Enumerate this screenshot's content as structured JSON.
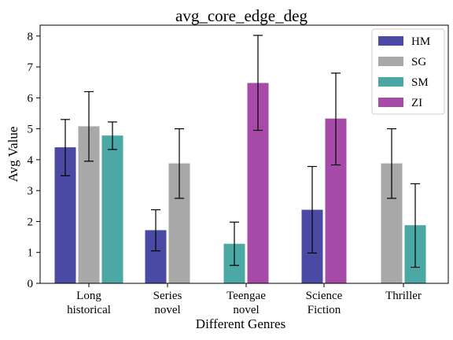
{
  "chart_data": {
    "type": "bar",
    "title": "avg_core_edge_deg",
    "xlabel": "Different Genres",
    "ylabel": "Avg Value",
    "ylim": [
      0,
      8.35
    ],
    "yticks": [
      0,
      1,
      2,
      3,
      4,
      5,
      6,
      7,
      8
    ],
    "grid": false,
    "legend_position": "top-right",
    "categories": [
      [
        "Long",
        "historical"
      ],
      [
        "Series",
        "novel"
      ],
      [
        "Teengae",
        "novel"
      ],
      [
        "Science",
        "Fiction"
      ],
      [
        "Thriller"
      ]
    ],
    "series": [
      {
        "name": "HM",
        "color": "#4a4aa5",
        "values": [
          4.4,
          1.72,
          null,
          2.38,
          null
        ],
        "err_low": [
          3.48,
          1.05,
          null,
          0.98,
          null
        ],
        "err_high": [
          5.3,
          2.38,
          null,
          3.78,
          null
        ]
      },
      {
        "name": "SG",
        "color": "#a8a8a8",
        "values": [
          5.08,
          3.88,
          null,
          null,
          3.88
        ],
        "err_low": [
          3.95,
          2.75,
          null,
          null,
          2.75
        ],
        "err_high": [
          6.2,
          5.0,
          null,
          null,
          5.0
        ]
      },
      {
        "name": "SM",
        "color": "#4ba8a5",
        "values": [
          4.78,
          null,
          1.28,
          null,
          1.88
        ],
        "err_low": [
          4.33,
          null,
          0.58,
          null,
          0.52
        ],
        "err_high": [
          5.22,
          null,
          1.98,
          null,
          3.22
        ]
      },
      {
        "name": "ZI",
        "color": "#a64ca8",
        "values": [
          null,
          null,
          6.48,
          5.33,
          null
        ],
        "err_low": [
          null,
          null,
          4.95,
          3.83,
          null
        ],
        "err_high": [
          null,
          null,
          8.02,
          6.8,
          null
        ]
      }
    ]
  }
}
